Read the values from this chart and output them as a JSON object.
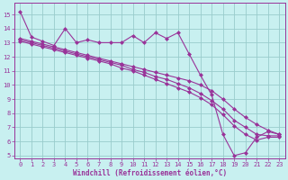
{
  "xlabel": "Windchill (Refroidissement éolien,°C)",
  "bg_color": "#c8f0f0",
  "line_color": "#993399",
  "grid_color": "#99cccc",
  "xlim": [
    -0.5,
    23.5
  ],
  "ylim": [
    4.8,
    15.8
  ],
  "yticks": [
    5,
    6,
    7,
    8,
    9,
    10,
    11,
    12,
    13,
    14,
    15
  ],
  "xticks": [
    0,
    1,
    2,
    3,
    4,
    5,
    6,
    7,
    8,
    9,
    10,
    11,
    12,
    13,
    14,
    15,
    16,
    17,
    18,
    19,
    20,
    21,
    22,
    23
  ],
  "series": [
    {
      "x": [
        0,
        1,
        2,
        3,
        4,
        5,
        6,
        7,
        8,
        9,
        10,
        11,
        12,
        13,
        14,
        15,
        16,
        17,
        18,
        19,
        20,
        21,
        22,
        23
      ],
      "y": [
        15.2,
        13.4,
        13.1,
        12.8,
        14.0,
        13.0,
        13.2,
        13.0,
        13.0,
        13.0,
        13.5,
        13.0,
        13.7,
        13.3,
        13.7,
        12.2,
        10.7,
        9.3,
        6.5,
        5.0,
        5.2,
        6.3,
        6.7,
        6.5
      ]
    },
    {
      "x": [
        0,
        1,
        2,
        3,
        4,
        5,
        6,
        7,
        8,
        9,
        10,
        11,
        12,
        13,
        14,
        15,
        16,
        17,
        18,
        19,
        20,
        21,
        22,
        23
      ],
      "y": [
        13.3,
        13.1,
        12.9,
        12.7,
        12.5,
        12.3,
        12.1,
        11.9,
        11.7,
        11.5,
        11.3,
        11.1,
        10.9,
        10.7,
        10.5,
        10.3,
        10.0,
        9.6,
        9.0,
        8.3,
        7.7,
        7.2,
        6.8,
        6.5
      ]
    },
    {
      "x": [
        0,
        1,
        2,
        3,
        4,
        5,
        6,
        7,
        8,
        9,
        10,
        11,
        12,
        13,
        14,
        15,
        16,
        17,
        18,
        19,
        20,
        21,
        22,
        23
      ],
      "y": [
        13.2,
        13.0,
        12.8,
        12.6,
        12.4,
        12.2,
        12.0,
        11.8,
        11.6,
        11.4,
        11.1,
        10.9,
        10.6,
        10.4,
        10.1,
        9.8,
        9.4,
        8.9,
        8.3,
        7.5,
        7.0,
        6.5,
        6.4,
        6.4
      ]
    },
    {
      "x": [
        0,
        1,
        2,
        3,
        4,
        5,
        6,
        7,
        8,
        9,
        10,
        11,
        12,
        13,
        14,
        15,
        16,
        17,
        18,
        19,
        20,
        21,
        22,
        23
      ],
      "y": [
        13.1,
        12.9,
        12.7,
        12.5,
        12.3,
        12.1,
        11.9,
        11.7,
        11.5,
        11.2,
        11.0,
        10.7,
        10.4,
        10.1,
        9.8,
        9.5,
        9.1,
        8.6,
        7.9,
        7.1,
        6.5,
        6.1,
        6.3,
        6.3
      ]
    }
  ],
  "marker": "D",
  "markersize": 2.0,
  "linewidth": 0.8
}
